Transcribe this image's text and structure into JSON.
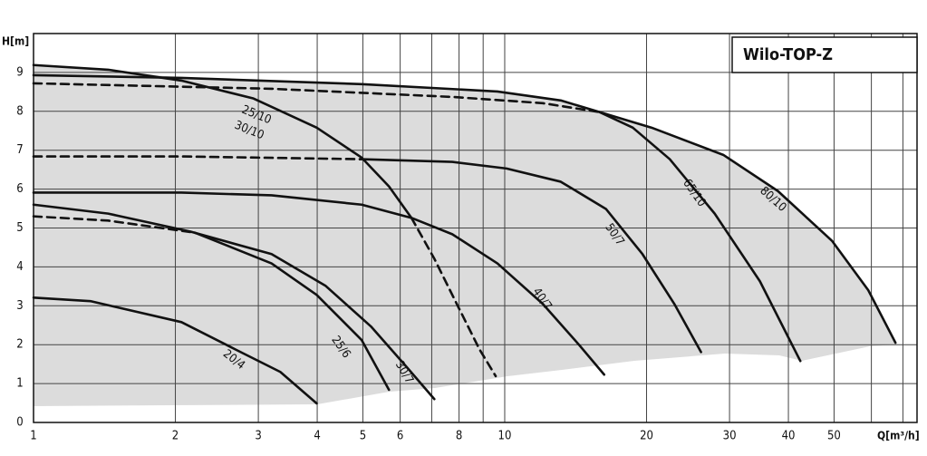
{
  "chart_data": {
    "type": "line",
    "title": "Wilo-TOP-Z",
    "x_label": "Q[m³/h]",
    "y_label": "H[m]",
    "xscale": "log",
    "xlim": [
      1,
      75
    ],
    "ylim": [
      0,
      10
    ],
    "xticks": [
      1,
      2,
      3,
      4,
      5,
      6,
      8,
      10,
      20,
      30,
      40,
      50
    ],
    "xgrid_minor": [
      7,
      9,
      60,
      70
    ],
    "yticks": [
      0,
      1,
      2,
      3,
      4,
      5,
      6,
      7,
      8,
      9
    ],
    "grid": true,
    "color": "#111111",
    "area_color": "#dcdcdc",
    "series": [
      {
        "labels": [
          "25/10",
          "30/10"
        ],
        "segments": [
          {
            "dashed": false,
            "x": [
              1,
              1.44,
              2.06,
              2.93,
              3.99,
              4.97,
              5.68,
              6.34
            ],
            "y": [
              9.19,
              9.07,
              8.79,
              8.33,
              7.58,
              6.81,
              6.07,
              5.26
            ]
          },
          {
            "dashed": true,
            "x": [
              6.34,
              7.09,
              7.91,
              8.84,
              9.57
            ],
            "y": [
              5.26,
              4.21,
              3.05,
              1.88,
              1.19
            ]
          }
        ]
      },
      {
        "labels": [
          "80/10"
        ],
        "segments": [
          {
            "dashed": false,
            "x": [
              1,
              2.06,
              4.97,
              9.65,
              13.15,
              15.9,
              20.5,
              29.1,
              38,
              49.5,
              59.1,
              67.5
            ],
            "y": [
              8.93,
              8.86,
              8.7,
              8.51,
              8.28,
              7.98,
              7.58,
              6.88,
              5.95,
              4.67,
              3.4,
              2.05
            ]
          }
        ]
      },
      {
        "labels": [
          "65/10"
        ],
        "segments": [
          {
            "dashed": true,
            "x": [
              1,
              3.2,
              7.74,
              12.04,
              15.9
            ],
            "y": [
              8.72,
              8.58,
              8.37,
              8.21,
              7.98
            ]
          },
          {
            "dashed": false,
            "x": [
              15.9,
              18.7,
              22.4,
              27.9,
              34.8,
              42.4
            ],
            "y": [
              7.98,
              7.58,
              6.77,
              5.37,
              3.63,
              1.58
            ]
          }
        ]
      },
      {
        "labels": [
          "50/7"
        ],
        "segments": [
          {
            "dashed": true,
            "x": [
              1,
              2.06,
              4.93
            ],
            "y": [
              6.84,
              6.84,
              6.77
            ]
          },
          {
            "dashed": false,
            "x": [
              4.93,
              7.74,
              10.09,
              13.15,
              16.4,
              19.6,
              22.9,
              26.1
            ],
            "y": [
              6.77,
              6.7,
              6.53,
              6.19,
              5.49,
              4.33,
              3.05,
              1.81
            ]
          }
        ]
      },
      {
        "labels": [
          "40/7"
        ],
        "segments": [
          {
            "dashed": false,
            "x": [
              1,
              2.06,
              3.2,
              4.97,
              6.34,
              7.74,
              9.65,
              12.04,
              14.37,
              16.26
            ],
            "y": [
              5.91,
              5.91,
              5.84,
              5.6,
              5.26,
              4.84,
              4.09,
              3.05,
              2.0,
              1.23
            ]
          }
        ]
      },
      {
        "labels": [
          "30/7"
        ],
        "segments": [
          {
            "dashed": false,
            "x": [
              1,
              1.44,
              2.15,
              3.2,
              4.17,
              5.2,
              6.2,
              7.09
            ],
            "y": [
              5.6,
              5.37,
              4.91,
              4.33,
              3.51,
              2.47,
              1.42,
              0.6
            ]
          }
        ]
      },
      {
        "labels": [
          "25/6"
        ],
        "segments": [
          {
            "dashed": true,
            "x": [
              1,
              1.44,
              2.2
            ],
            "y": [
              5.3,
              5.19,
              4.88
            ]
          },
          {
            "dashed": false,
            "x": [
              2.2,
              3.2,
              3.99,
              4.97,
              5.68
            ],
            "y": [
              4.88,
              4.09,
              3.28,
              2.12,
              0.84
            ]
          }
        ]
      },
      {
        "labels": [
          "20/4"
        ],
        "segments": [
          {
            "dashed": false,
            "x": [
              1,
              1.32,
              2.06,
              2.68,
              3.34,
              3.99
            ],
            "y": [
              3.21,
              3.12,
              2.58,
              1.88,
              1.3,
              0.49
            ]
          }
        ]
      }
    ]
  }
}
